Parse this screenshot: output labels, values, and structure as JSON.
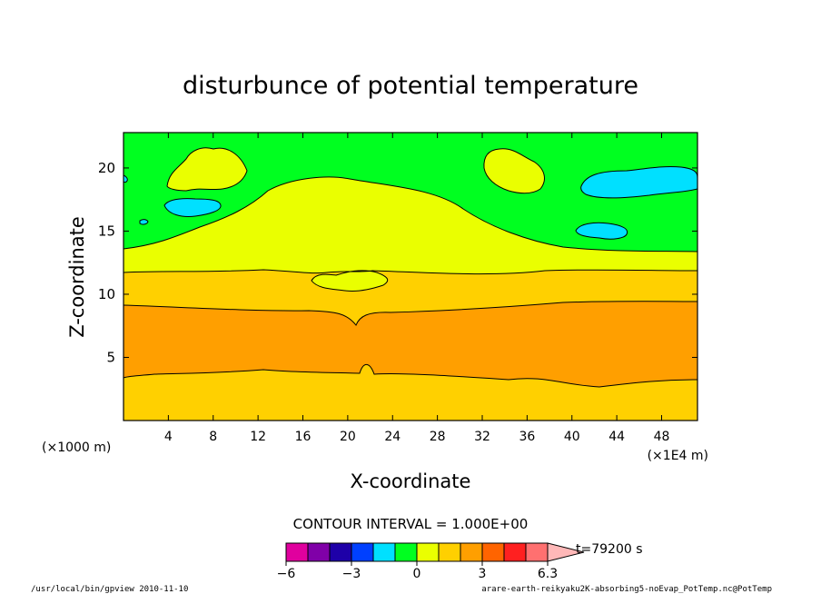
{
  "chart_data": {
    "type": "heatmap",
    "title": "disturbunce of potential temperature",
    "xlabel": "X-coordinate",
    "ylabel": "Z-coordinate",
    "x_unit_left": "(×1000 m)",
    "x_unit_right": "(×1E4 m)",
    "xlim": [
      0,
      51.2
    ],
    "ylim": [
      0,
      22.8
    ],
    "x_ticks": [
      "4",
      "8",
      "12",
      "16",
      "20",
      "24",
      "28",
      "32",
      "36",
      "40",
      "44",
      "48"
    ],
    "y_ticks": [
      "5",
      "10",
      "15",
      "20"
    ],
    "contour_interval": "CONTOUR INTERVAL = 1.000E+00",
    "time_label": "t=79200 s",
    "colorbar": {
      "colors": [
        "#e0009e",
        "#8000a8",
        "#1e00a8",
        "#0040ff",
        "#00e0ff",
        "#00ff20",
        "#eaff00",
        "#ffd000",
        "#ff9f00",
        "#ff6400",
        "#ff2020",
        "#ff7070",
        "#ffb8b8"
      ],
      "labels": [
        "−6",
        "−3",
        "0",
        "3",
        "6.3"
      ]
    },
    "bands": [
      {
        "level": "1-2",
        "z_bottom": 0,
        "z_top": 3.5
      },
      {
        "level": "2-3",
        "z_bottom": 3.5,
        "z_top": 9.2
      },
      {
        "level": "1-2",
        "z_bottom": 9.2,
        "z_top": 11.8
      },
      {
        "level": "0-1",
        "z_bottom": 11.8,
        "z_top": 13.8
      },
      {
        "level": "-1-0",
        "z_bottom": 13.8,
        "z_top": 22.8
      }
    ]
  },
  "footer": {
    "left": "/usr/local/bin/gpview  2010-11-10",
    "right": "arare-earth-reikyaku2K-absorbing5-noEvap_PotTemp.nc@PotTemp"
  }
}
